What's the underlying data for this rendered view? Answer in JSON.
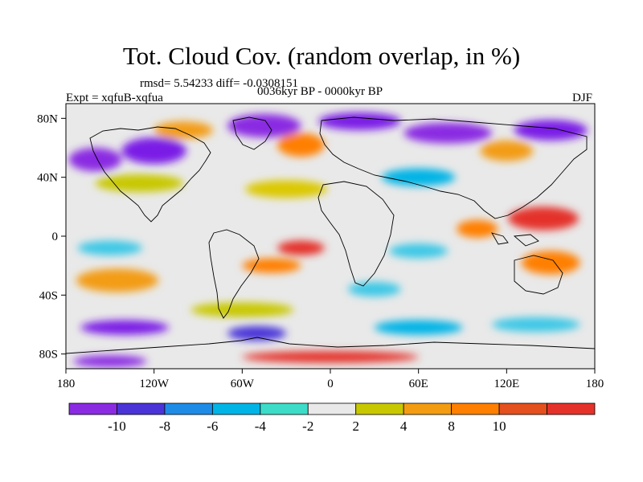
{
  "title": "Tot. Cloud Cov. (random overlap, in %)",
  "stats": "rmsd= 5.54233 diff= -0.0308151",
  "period": "0036kyr BP - 0000kyr BP",
  "experiment": "Expt = xqfuB-xqfua",
  "season": "DJF",
  "map": {
    "projection": "cylindrical-equidistant",
    "lon_range": [
      -180,
      180
    ],
    "lat_range": [
      -90,
      90
    ],
    "x_ticks": [
      {
        "value": -180,
        "label": "180"
      },
      {
        "value": -120,
        "label": "120W"
      },
      {
        "value": -60,
        "label": "60W"
      },
      {
        "value": 0,
        "label": "0"
      },
      {
        "value": 60,
        "label": "60E"
      },
      {
        "value": 120,
        "label": "120E"
      },
      {
        "value": 180,
        "label": "180"
      }
    ],
    "y_ticks": [
      {
        "value": 80,
        "label": "80N"
      },
      {
        "value": 40,
        "label": "40N"
      },
      {
        "value": 0,
        "label": "0"
      },
      {
        "value": -40,
        "label": "40S"
      },
      {
        "value": -80,
        "label": "80S"
      }
    ],
    "background_color": "#e9e9e9",
    "anomaly_regions": [
      {
        "lon": -160,
        "lat": 52,
        "rlon": 18,
        "rlat": 8,
        "color": "#8a2be2"
      },
      {
        "lon": -120,
        "lat": 58,
        "rlon": 22,
        "rlat": 9,
        "color": "#7a1ce6"
      },
      {
        "lon": -45,
        "lat": 75,
        "rlon": 25,
        "rlat": 8,
        "color": "#8a2be2"
      },
      {
        "lon": 20,
        "lat": 78,
        "rlon": 28,
        "rlat": 6,
        "color": "#7a1ce6"
      },
      {
        "lon": 80,
        "lat": 70,
        "rlon": 30,
        "rlat": 7,
        "color": "#8a2be2"
      },
      {
        "lon": 150,
        "lat": 72,
        "rlon": 25,
        "rlat": 7,
        "color": "#7a1ce6"
      },
      {
        "lon": -100,
        "lat": 72,
        "rlon": 20,
        "rlat": 6,
        "color": "#f39c12"
      },
      {
        "lon": -20,
        "lat": 62,
        "rlon": 16,
        "rlat": 8,
        "color": "#ff7f00"
      },
      {
        "lon": 120,
        "lat": 58,
        "rlon": 18,
        "rlat": 7,
        "color": "#f39c12"
      },
      {
        "lon": -130,
        "lat": 36,
        "rlon": 30,
        "rlat": 6,
        "color": "#c8c800"
      },
      {
        "lon": -30,
        "lat": 32,
        "rlon": 28,
        "rlat": 6,
        "color": "#dbc800"
      },
      {
        "lon": 60,
        "lat": 40,
        "rlon": 25,
        "rlat": 6,
        "color": "#00b4e6"
      },
      {
        "lon": 145,
        "lat": 12,
        "rlon": 24,
        "rlat": 8,
        "color": "#e4322b"
      },
      {
        "lon": 100,
        "lat": 5,
        "rlon": 14,
        "rlat": 6,
        "color": "#ff7f00"
      },
      {
        "lon": -20,
        "lat": -8,
        "rlon": 16,
        "rlat": 5,
        "color": "#e4322b"
      },
      {
        "lon": -40,
        "lat": -20,
        "rlon": 20,
        "rlat": 5,
        "color": "#ff7f00"
      },
      {
        "lon": -145,
        "lat": -30,
        "rlon": 28,
        "rlat": 8,
        "color": "#f39c12"
      },
      {
        "lon": -150,
        "lat": -8,
        "rlon": 22,
        "rlat": 5,
        "color": "#3cc8e6"
      },
      {
        "lon": 60,
        "lat": -10,
        "rlon": 20,
        "rlat": 5,
        "color": "#3cc8e6"
      },
      {
        "lon": 150,
        "lat": -18,
        "rlon": 20,
        "rlat": 8,
        "color": "#ff7f00"
      },
      {
        "lon": 30,
        "lat": -36,
        "rlon": 18,
        "rlat": 5,
        "color": "#3cc8e6"
      },
      {
        "lon": -60,
        "lat": -50,
        "rlon": 35,
        "rlat": 5,
        "color": "#c8c800"
      },
      {
        "lon": -140,
        "lat": -62,
        "rlon": 30,
        "rlat": 5,
        "color": "#7a1ce6"
      },
      {
        "lon": -50,
        "lat": -66,
        "rlon": 20,
        "rlat": 5,
        "color": "#4a34d8"
      },
      {
        "lon": 60,
        "lat": -62,
        "rlon": 30,
        "rlat": 5,
        "color": "#00b4e6"
      },
      {
        "lon": 140,
        "lat": -60,
        "rlon": 30,
        "rlat": 5,
        "color": "#3cc8e6"
      },
      {
        "lon": 0,
        "lat": -82,
        "rlon": 60,
        "rlat": 4,
        "color": "#e4322b"
      },
      {
        "lon": -150,
        "lat": -85,
        "rlon": 25,
        "rlat": 4,
        "color": "#8a2be2"
      }
    ]
  },
  "colorbar": {
    "colors": [
      "#8a2be2",
      "#4a34d8",
      "#1e8ce6",
      "#00b4e6",
      "#3cdcc8",
      "#e9e9e9",
      "#c8c800",
      "#f39c12",
      "#ff7f00",
      "#e4501e",
      "#e4322b"
    ],
    "labels": [
      "-10",
      "-8",
      "-6",
      "-4",
      "-2",
      "2",
      "4",
      "8",
      "10"
    ]
  }
}
